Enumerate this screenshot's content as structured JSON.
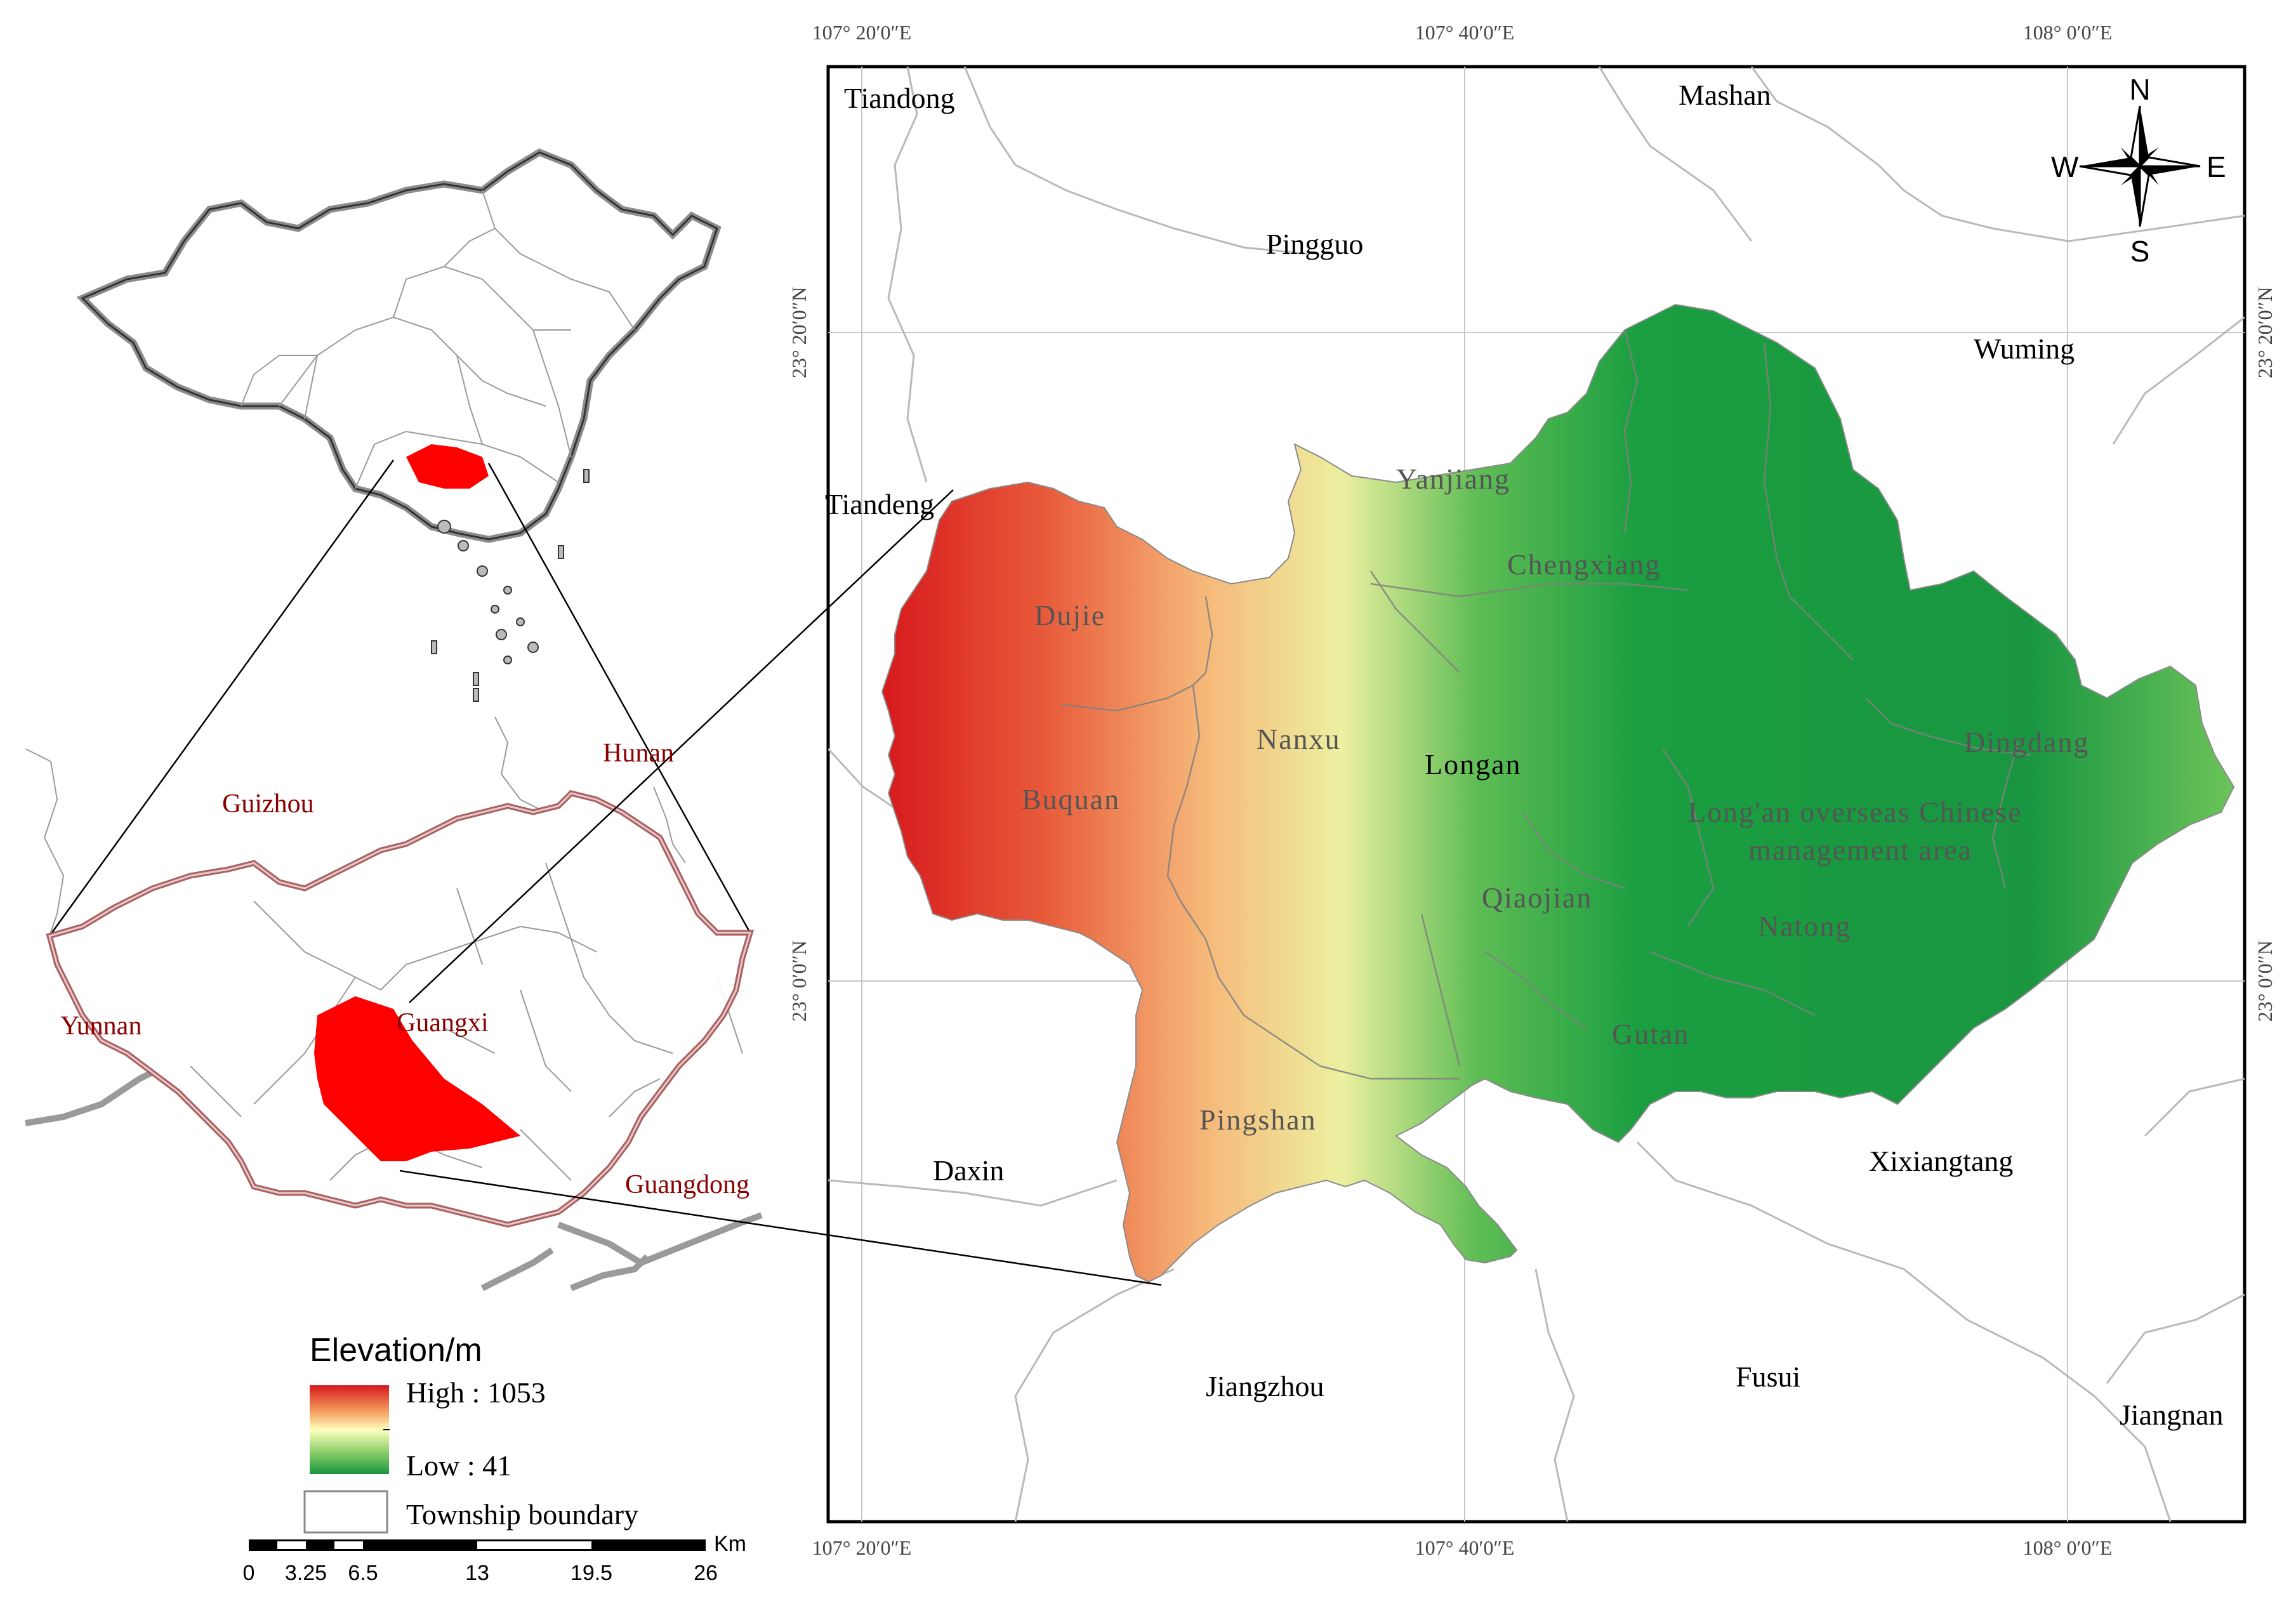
{
  "coordinates": {
    "top_lon": [
      "107° 20′0″E",
      "107° 40′0″E",
      "108° 0′0″E"
    ],
    "bottom_lon": [
      "107° 20′0″E",
      "107° 40′0″E",
      "108° 0′0″E"
    ],
    "left_lat": [
      "23° 20′0″N",
      "23° 0′0″N"
    ],
    "right_lat": [
      "23° 20′0″N",
      "23° 0′0″N"
    ]
  },
  "north_arrow": {
    "n": "N",
    "s": "S",
    "e": "E",
    "w": "W"
  },
  "neighbors": {
    "tiandong": "Tiandong",
    "mashan": "Mashan",
    "pingguo": "Pingguo",
    "wuming": "Wuming",
    "tiandeng": "Tiandeng",
    "daxin": "Daxin",
    "xixiangtang": "Xixiangtang",
    "jiangzhou": "Jiangzhou",
    "fusui": "Fusui",
    "jiangnan": "Jiangnan"
  },
  "townships": {
    "yanjiang": "Yanjiang",
    "chengxiang": "Chengxiang",
    "dujie": "Dujie",
    "nanxu": "Nanxu",
    "longan": "Longan",
    "buquan": "Buquan",
    "dingdang": "Dingdang",
    "overseas_line1": "Long'an overseas Chinese",
    "overseas_line2": "management area",
    "qiaojian": "Qiaojian",
    "natong": "Natong",
    "gutan": "Gutan",
    "pingshan": "Pingshan"
  },
  "provinces": {
    "guizhou": "Guizhou",
    "hunan": "Hunan",
    "yunnan": "Yunnan",
    "guangxi": "Guangxi",
    "guangdong": "Guangdong"
  },
  "legend": {
    "title": "Elevation/m",
    "high": "High : 1053",
    "low": "Low : 41",
    "boundary": "Township boundary"
  },
  "scale_bar": {
    "unit": "Km",
    "ticks": [
      "0",
      "3.25",
      "6.5",
      "13",
      "19.5",
      "26"
    ]
  },
  "colors": {
    "high": "#d7191c",
    "mid": "#ffffbf",
    "low": "#1a9641",
    "highlight": "#ff0000",
    "province_border": "#a05050",
    "province_label": "#8b0000"
  }
}
